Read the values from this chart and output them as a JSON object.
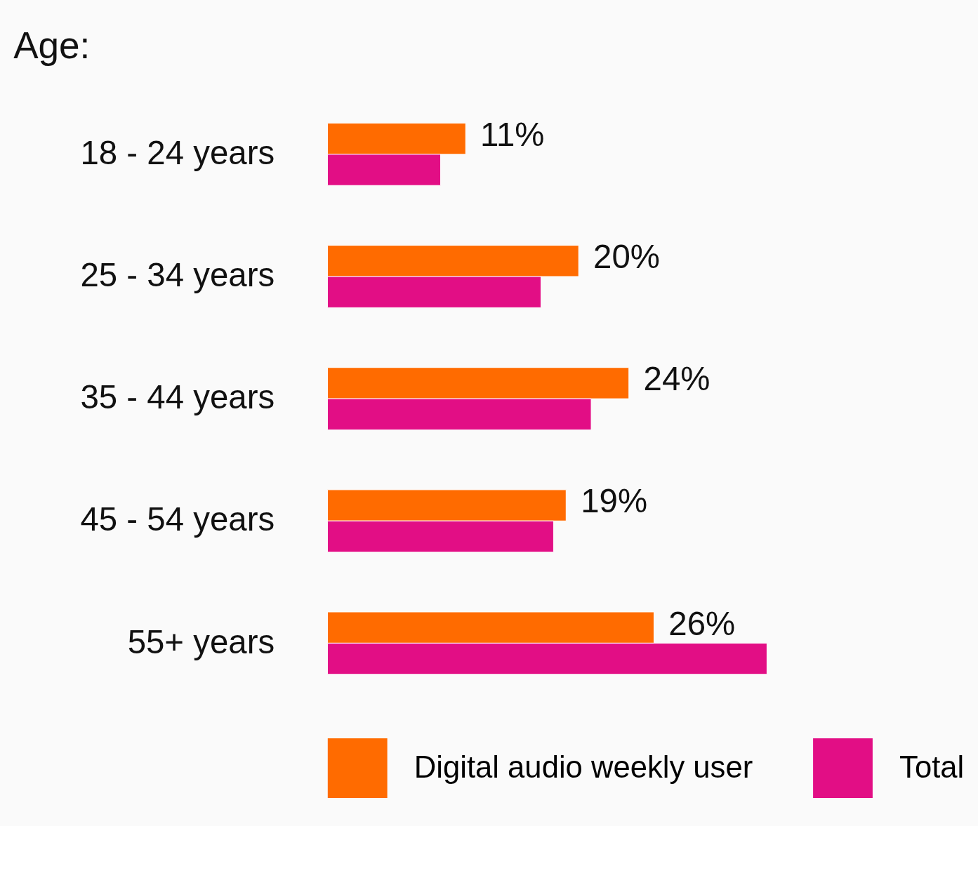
{
  "chart_data": {
    "type": "bar",
    "orientation": "horizontal",
    "title": "Age:",
    "categories": [
      "18 - 24 years",
      "25 - 34 years",
      "35 - 44 years",
      "45 - 54 years",
      "55+ years"
    ],
    "series": [
      {
        "name": "Digital audio weekly user",
        "color": "#ff6b00",
        "values": [
          11,
          20,
          24,
          19,
          26
        ],
        "value_labels": [
          "11%",
          "20%",
          "24%",
          "19%",
          "26%"
        ]
      },
      {
        "name": "Total",
        "color": "#e20e85",
        "values": [
          9,
          17,
          21,
          18,
          35
        ]
      }
    ],
    "legend": "bottom",
    "grid": false,
    "tick_labels": "y"
  }
}
